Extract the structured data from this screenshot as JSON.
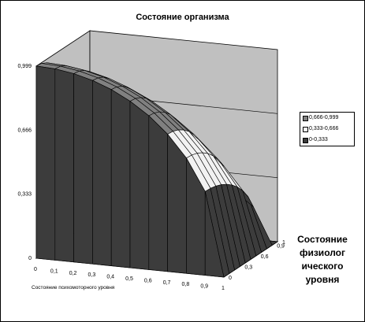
{
  "chart_data": {
    "type": "surface",
    "title": "Состояние организма",
    "xlabel": "Состояние психомоторного уровня",
    "ylabel": "Состояние\nфизиолог\nического\nуровня",
    "x_ticks": [
      "0",
      "0,1",
      "0,2",
      "0,3",
      "0,4",
      "0,5",
      "0,6",
      "0,7",
      "0,8",
      "0,9",
      "1"
    ],
    "depth_ticks": [
      "0",
      "0,3",
      "0,6",
      "0,9",
      "1"
    ],
    "z_ticks": [
      "0",
      "0,333",
      "0,666",
      "0,999"
    ],
    "zlim": [
      0,
      0.999
    ],
    "x": [
      0,
      0.1,
      0.2,
      0.3,
      0.4,
      0.5,
      0.6,
      0.7,
      0.8,
      0.9,
      1
    ],
    "y": [
      0,
      0.1,
      0.2,
      0.3,
      0.4,
      0.5,
      0.6,
      0.7,
      0.8,
      0.9,
      1
    ],
    "z_formula": "sqrt((1 - x^2) * (1 - y^2))",
    "series": [
      {
        "name": "0,666-0,999",
        "range": [
          0.666,
          0.999
        ],
        "color": "#808080"
      },
      {
        "name": "0,333-0,666",
        "range": [
          0.333,
          0.666
        ],
        "color": "#f2f2f2"
      },
      {
        "name": "0-0,333",
        "range": [
          0,
          0.333
        ],
        "color": "#3c3c3c"
      }
    ],
    "colors": {
      "wall": "#c0c0c0",
      "floor": "#ffffff",
      "gridline": "#000000"
    },
    "grid": true,
    "legend_position": "right"
  }
}
